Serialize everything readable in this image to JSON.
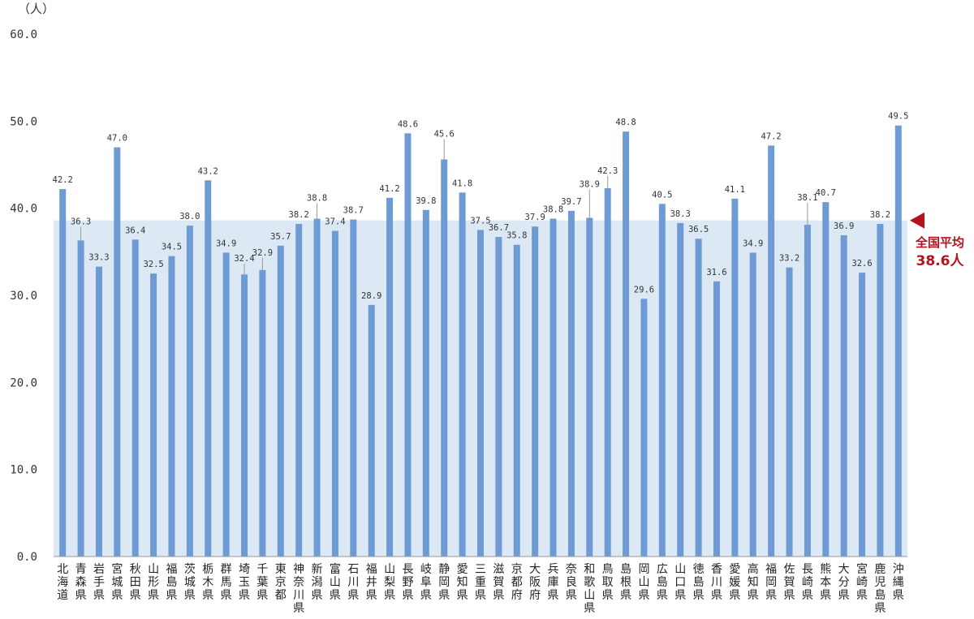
{
  "chart_data": {
    "type": "bar",
    "unit_label": "（人）",
    "ylim": [
      0,
      60
    ],
    "yticks": [
      "0.0",
      "10.0",
      "20.0",
      "30.0",
      "40.0",
      "50.0",
      "60.0"
    ],
    "grid": false,
    "categories": [
      "北海道",
      "青森県",
      "岩手県",
      "宮城県",
      "秋田県",
      "山形県",
      "福島県",
      "茨城県",
      "栃木県",
      "群馬県",
      "埼玉県",
      "千葉県",
      "東京都",
      "神奈川県",
      "新潟県",
      "富山県",
      "石川県",
      "福井県",
      "山梨県",
      "長野県",
      "岐阜県",
      "静岡県",
      "愛知県",
      "三重県",
      "滋賀県",
      "京都府",
      "大阪府",
      "兵庫県",
      "奈良県",
      "和歌山県",
      "鳥取県",
      "島根県",
      "岡山県",
      "広島県",
      "山口県",
      "徳島県",
      "香川県",
      "愛媛県",
      "高知県",
      "福岡県",
      "佐賀県",
      "長崎県",
      "熊本県",
      "大分県",
      "宮崎県",
      "鹿児島県",
      "沖縄県"
    ],
    "values": [
      42.2,
      36.3,
      33.3,
      47.0,
      36.4,
      32.5,
      34.5,
      38.0,
      43.2,
      34.9,
      32.4,
      32.9,
      35.7,
      38.2,
      38.8,
      37.4,
      38.7,
      28.9,
      41.2,
      48.6,
      39.8,
      45.6,
      41.8,
      37.5,
      36.7,
      35.8,
      37.9,
      38.8,
      39.7,
      38.9,
      42.3,
      48.8,
      29.6,
      40.5,
      38.3,
      36.5,
      31.6,
      41.1,
      34.9,
      47.2,
      33.2,
      38.1,
      40.7,
      36.9,
      32.6,
      38.2,
      49.5
    ],
    "data_labels": [
      "42.2",
      "36.3",
      "33.3",
      "47.0",
      "36.4",
      "32.5",
      "34.5",
      "38.0",
      "43.2",
      "34.9",
      "32.4",
      "32.9",
      "35.7",
      "38.2",
      "38.8",
      "37.4",
      "38.7",
      "28.9",
      "41.2",
      "48.6",
      "39.8",
      "45.6",
      "41.8",
      "37.5",
      "36.7",
      "35.8",
      "37.9",
      "38.8",
      "39.7",
      "38.9",
      "42.3",
      "48.8",
      "29.6",
      "40.5",
      "38.3",
      "36.5",
      "31.6",
      "41.1",
      "34.9",
      "47.2",
      "33.2",
      "38.1",
      "40.7",
      "36.9",
      "32.6",
      "38.2",
      "49.5"
    ],
    "average": {
      "value": 38.6,
      "label_line1": "全国平均",
      "label_line2": "38.6人"
    },
    "colors": {
      "bar": "#6f9bd4",
      "average_band": "#dde8f5",
      "average_text": "#b5121b",
      "axis": "#999999"
    }
  }
}
